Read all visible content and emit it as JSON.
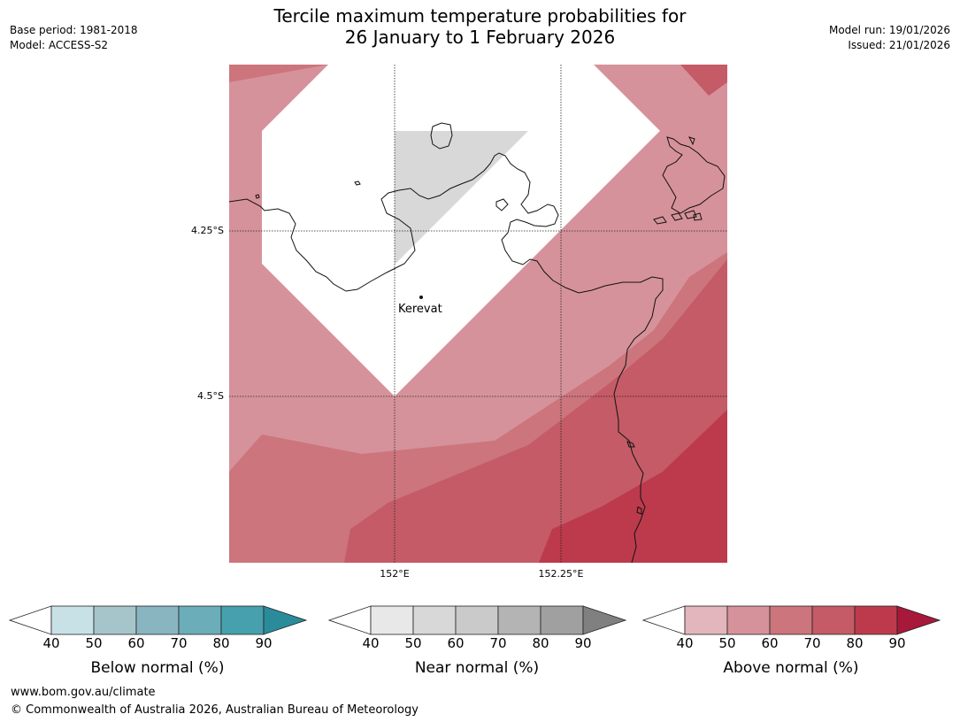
{
  "header": {
    "title_line1": "Tercile maximum temperature probabilities for",
    "title_line2": "26 January to 1 February 2026",
    "base_period": "Base period: 1981-2018",
    "model": "Model: ACCESS-S2",
    "model_run": "Model run: 19/01/2026",
    "issued": "Issued: 21/01/2026"
  },
  "map": {
    "place_name": "Kerevat",
    "lat_labels": [
      "4.25°S",
      "4.5°S"
    ],
    "lon_labels": [
      "152°E",
      "152.25°E"
    ]
  },
  "legend": {
    "below": {
      "label": "Below normal (%)",
      "ticks": [
        "40",
        "50",
        "60",
        "70",
        "80",
        "90"
      ],
      "colors": [
        "#ffffff",
        "#c8e1e6",
        "#a6c5cb",
        "#89b5c1",
        "#6badb8",
        "#47a0ad",
        "#2a8c9b"
      ]
    },
    "near": {
      "label": "Near normal (%)",
      "ticks": [
        "40",
        "50",
        "60",
        "70",
        "80",
        "90"
      ],
      "colors": [
        "#ffffff",
        "#e8e8e8",
        "#d8d8d8",
        "#cacaca",
        "#b4b4b4",
        "#a0a0a0",
        "#808080"
      ]
    },
    "above": {
      "label": "Above normal (%)",
      "ticks": [
        "40",
        "50",
        "60",
        "70",
        "80",
        "90"
      ],
      "colors": [
        "#ffffff",
        "#e2b6bc",
        "#d6929a",
        "#cc757c",
        "#c45b66",
        "#bc3a4c",
        "#a8183a"
      ]
    }
  },
  "footer": {
    "url": "www.bom.gov.au/climate",
    "copyright": "© Commonwealth of Australia 2026, Australian Bureau of Meteorology"
  }
}
